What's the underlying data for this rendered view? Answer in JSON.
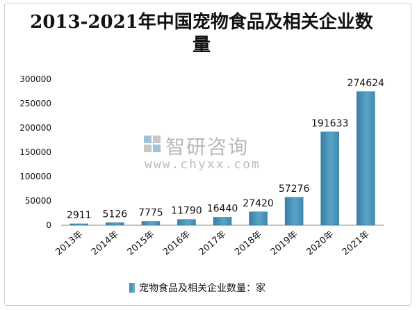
{
  "chart_data": {
    "type": "bar",
    "title": "2013-2021年中国宠物食品及相关企业数量",
    "categories": [
      "2013年",
      "2014年",
      "2015年",
      "2016年",
      "2017年",
      "2018年",
      "2019年",
      "2020年",
      "2021年"
    ],
    "series": [
      {
        "name": "宠物食品及相关企业数量：家",
        "values": [
          2911,
          5126,
          7775,
          11790,
          16440,
          27420,
          57276,
          191633,
          274624
        ]
      }
    ],
    "data_labels": [
      "2911",
      "5126",
      "7775",
      "11790",
      "16440",
      "27420",
      "57276",
      "191633",
      "274624"
    ],
    "ylim": [
      0,
      300000
    ],
    "yticks": [
      0,
      50000,
      100000,
      150000,
      200000,
      250000,
      300000
    ],
    "ytick_labels": [
      "0",
      "50000",
      "100000",
      "150000",
      "200000",
      "250000",
      "300000"
    ],
    "grid": false,
    "legend_position": "bottom",
    "bar_color": "#4a93b9"
  },
  "watermark": {
    "name": "智研咨询",
    "url": "www.chyxx.com"
  },
  "colors": {
    "bar": "#4a93b9",
    "bar_light": "#7bb8d6",
    "axis": "#8a8a8a",
    "text": "#111111"
  }
}
